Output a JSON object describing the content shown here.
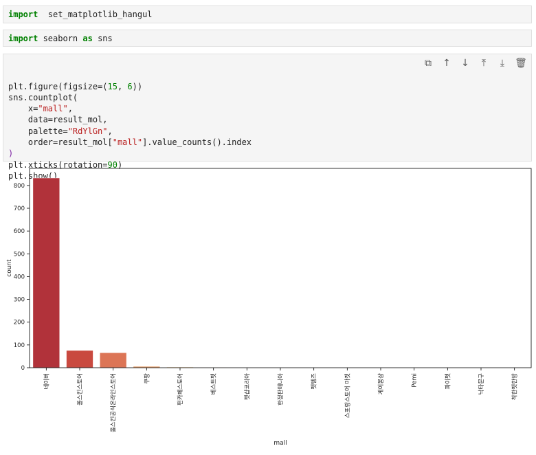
{
  "cells": [
    {
      "code": [
        [
          "kw",
          "import"
        ],
        [
          "",
          "  set_matplotlib_hangul"
        ]
      ]
    },
    {
      "code": [
        [
          "kw",
          "import"
        ],
        [
          "",
          " seaborn "
        ],
        [
          "kw",
          "as"
        ],
        [
          "",
          " sns"
        ]
      ]
    },
    {
      "lines": [
        [
          [
            "",
            "plt.figure(figsize=("
          ],
          [
            "num",
            "15"
          ],
          [
            "",
            ", "
          ],
          [
            "num",
            "6"
          ],
          [
            "",
            "))"
          ]
        ],
        [
          [
            "",
            "sns.countplot("
          ]
        ],
        [
          [
            "",
            "    x="
          ],
          [
            "str",
            "\"mall\""
          ],
          [
            "",
            ","
          ]
        ],
        [
          [
            "",
            "    data=result_mol,"
          ]
        ],
        [
          [
            "",
            "    palette="
          ],
          [
            "str",
            "\"RdYlGn\""
          ],
          [
            "",
            ","
          ]
        ],
        [
          [
            "",
            "    order=result_mol["
          ],
          [
            "str",
            "\"mall\""
          ],
          [
            "",
            "].value_counts().index"
          ]
        ],
        [
          [
            "par",
            ")"
          ]
        ],
        [
          [
            "",
            "plt.xticks(rotation="
          ],
          [
            "num",
            "90"
          ],
          [
            "",
            ")"
          ]
        ],
        [
          [
            "",
            "plt.show()"
          ]
        ]
      ]
    }
  ],
  "toolbar": [
    {
      "icon": "copy-icon",
      "glyph": "⧉"
    },
    {
      "icon": "arrow-up-icon",
      "glyph": "↑"
    },
    {
      "icon": "arrow-down-icon",
      "glyph": "↓"
    },
    {
      "icon": "insert-above-icon",
      "glyph": "⤒"
    },
    {
      "icon": "insert-below-icon",
      "glyph": "⤓"
    },
    {
      "icon": "trash-icon",
      "glyph": "🗑"
    }
  ],
  "chart_data": {
    "type": "bar",
    "xlabel": "mall",
    "ylabel": "count",
    "ylim": [
      0,
      875
    ],
    "yticks": [
      0,
      100,
      200,
      300,
      400,
      500,
      600,
      700,
      800
    ],
    "grid": false,
    "categories": [
      "네이버",
      "올스킨스토어",
      "올스킨공식온라인스토어",
      "쿠팡",
      "펀카페스토어",
      "베스트펫",
      "펫샵코리아",
      "한정판매니아",
      "펫템즈",
      "스포랑스토어 마켓",
      "게이몽샵",
      "Pemi",
      "파이펫",
      "낙타문구",
      "착한펫한방"
    ],
    "values": [
      833,
      76,
      66,
      6,
      3,
      2,
      1,
      1,
      1,
      1,
      1,
      1,
      1,
      1,
      1
    ],
    "colors": [
      "#b1323a",
      "#c9493f",
      "#dc7556",
      "#e69b63",
      "#ecc27a",
      "#eedf98",
      "#ececb8",
      "#d9e8a6",
      "#bcdb8c",
      "#99cc7a",
      "#72b86c",
      "#4e9f5e",
      "#3a8751",
      "#2c6e45",
      "#245a3a"
    ]
  }
}
